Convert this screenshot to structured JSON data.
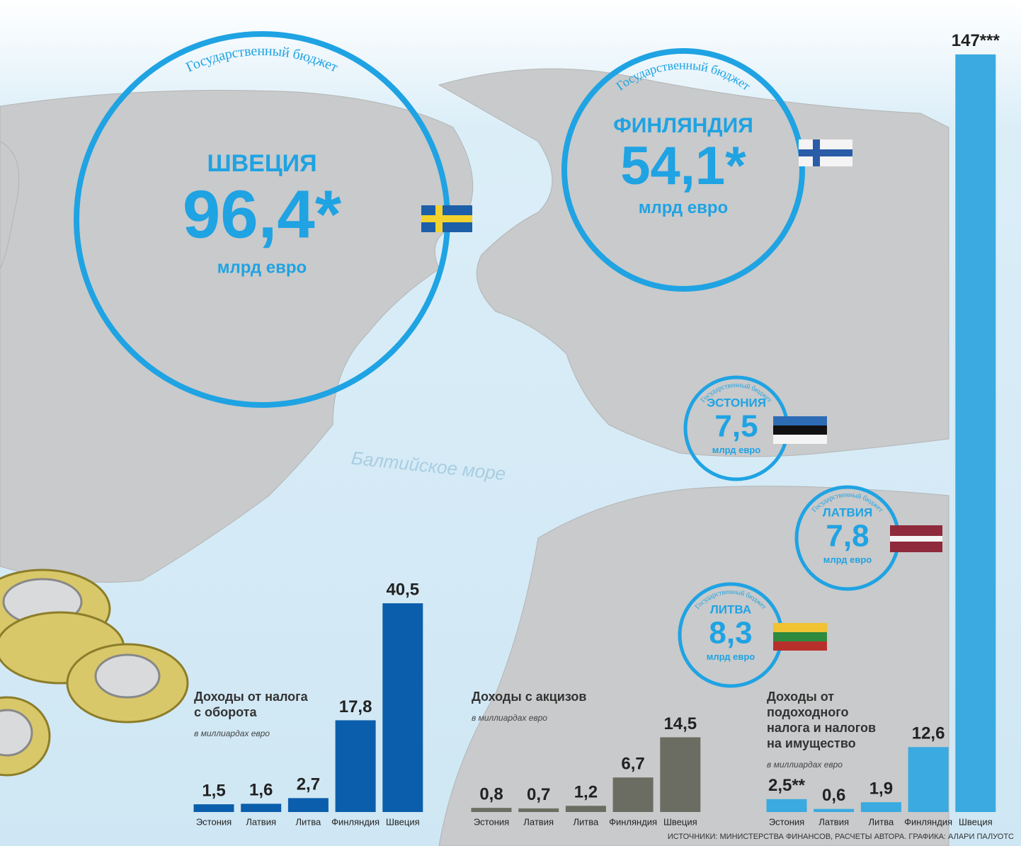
{
  "budgets": [
    {
      "label": "Государственный бюджет",
      "country": "ШВЕЦИЯ",
      "value": "96,4*",
      "unit": "млрд евро"
    },
    {
      "label": "Государственный бюджет",
      "country": "ФИНЛЯНДИЯ",
      "value": "54,1*",
      "unit": "млрд евро"
    },
    {
      "label": "Государственный бюджет",
      "country": "ЭСТОНИЯ",
      "value": "7,5",
      "unit": "млрд евро"
    },
    {
      "label": "Государственный бюджет",
      "country": "ЛАТВИЯ",
      "value": "7,8",
      "unit": "млрд евро"
    },
    {
      "label": "Государственный бюджет",
      "country": "ЛИТВА",
      "value": "8,3",
      "unit": "млрд евро"
    }
  ],
  "sea_label": "Балтийское море",
  "chart_data": [
    {
      "type": "bar",
      "title": [
        "Доходы от налога",
        "с оборота"
      ],
      "subtitle": "в миллиардах евро",
      "categories": [
        "Эстония",
        "Латвия",
        "Литва",
        "Финляндия",
        "Швеция"
      ],
      "values": [
        1.5,
        1.6,
        2.7,
        17.8,
        40.5
      ],
      "value_labels": [
        "1,5",
        "1,6",
        "2,7",
        "17,8",
        "40,5"
      ],
      "color": "#0b5eab"
    },
    {
      "type": "bar",
      "title": [
        "Доходы с акцизов"
      ],
      "subtitle": "в миллиардах евро",
      "categories": [
        "Эстония",
        "Латвия",
        "Литва",
        "Финляндия",
        "Швеция"
      ],
      "values": [
        0.8,
        0.7,
        1.2,
        6.7,
        14.5
      ],
      "value_labels": [
        "0,8",
        "0,7",
        "1,2",
        "6,7",
        "14,5"
      ],
      "color": "#6b6d62"
    },
    {
      "type": "bar",
      "title": [
        "Доходы от",
        "подоходного",
        "налога и налогов",
        "на имущество"
      ],
      "subtitle": "в миллиардах евро",
      "categories": [
        "Эстония",
        "Латвия",
        "Литва",
        "Финляндия",
        "Швеция"
      ],
      "values": [
        2.5,
        0.6,
        1.9,
        12.6,
        147
      ],
      "value_labels": [
        "2,5**",
        "0,6",
        "1,9",
        "12,6",
        "147***"
      ],
      "color": "#3aaae1"
    }
  ],
  "source": "ИСТОЧНИКИ: МИНИСТЕРСТВА ФИНАНСОВ, РАСЧЕТЫ АВТОРА. ГРАФИКА: АЛАРИ ПАЛУОТС"
}
